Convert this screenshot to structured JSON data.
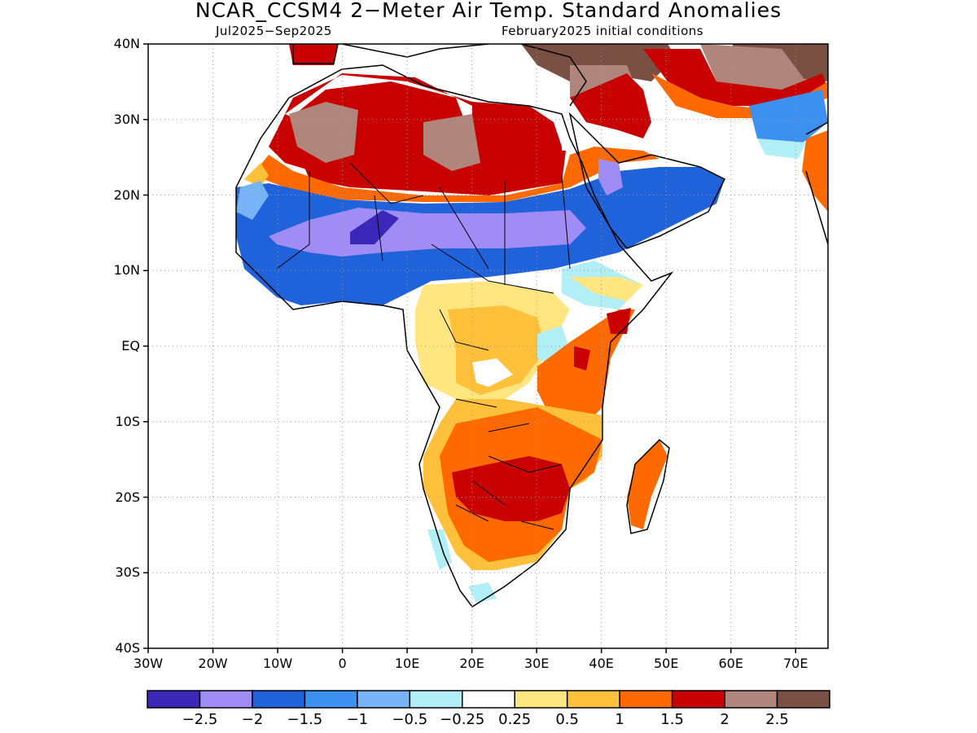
{
  "title": "NCAR_CCSM4 2−Meter Air Temp. Standard Anomalies",
  "subtitle_left": "Jul2025−Sep2025",
  "subtitle_right": "February2025 initial conditions",
  "map": {
    "lat_labels": [
      "40N",
      "30N",
      "20N",
      "10N",
      "EQ",
      "10S",
      "20S",
      "30S",
      "40S"
    ],
    "lon_labels": [
      "30W",
      "20W",
      "10W",
      "0",
      "10E",
      "20E",
      "30E",
      "40E",
      "50E",
      "60E",
      "70E"
    ],
    "lat_values": [
      40,
      30,
      20,
      10,
      0,
      -10,
      -20,
      -30,
      -40
    ],
    "lon_values": [
      -30,
      -20,
      -10,
      0,
      10,
      20,
      30,
      40,
      50,
      60,
      70
    ],
    "extent": {
      "lon_min": -30,
      "lon_max": 75,
      "lat_min": -40,
      "lat_max": 40
    },
    "gridlines": true,
    "grid_style": "dotted"
  },
  "colorbar": {
    "colors": [
      "#3b28b8",
      "#9f8cf5",
      "#1f62d9",
      "#3b90f0",
      "#78b4f5",
      "#b2eef6",
      "#ffffff",
      "#ffe680",
      "#ffc03c",
      "#ff6a00",
      "#c80000",
      "#b0857c",
      "#7a5044"
    ],
    "labels": [
      "−2.5",
      "−2",
      "−1.5",
      "−1",
      "−0.5",
      "−0.25",
      "0.25",
      "0.5",
      "1",
      "1.5",
      "2",
      "2.5"
    ]
  }
}
